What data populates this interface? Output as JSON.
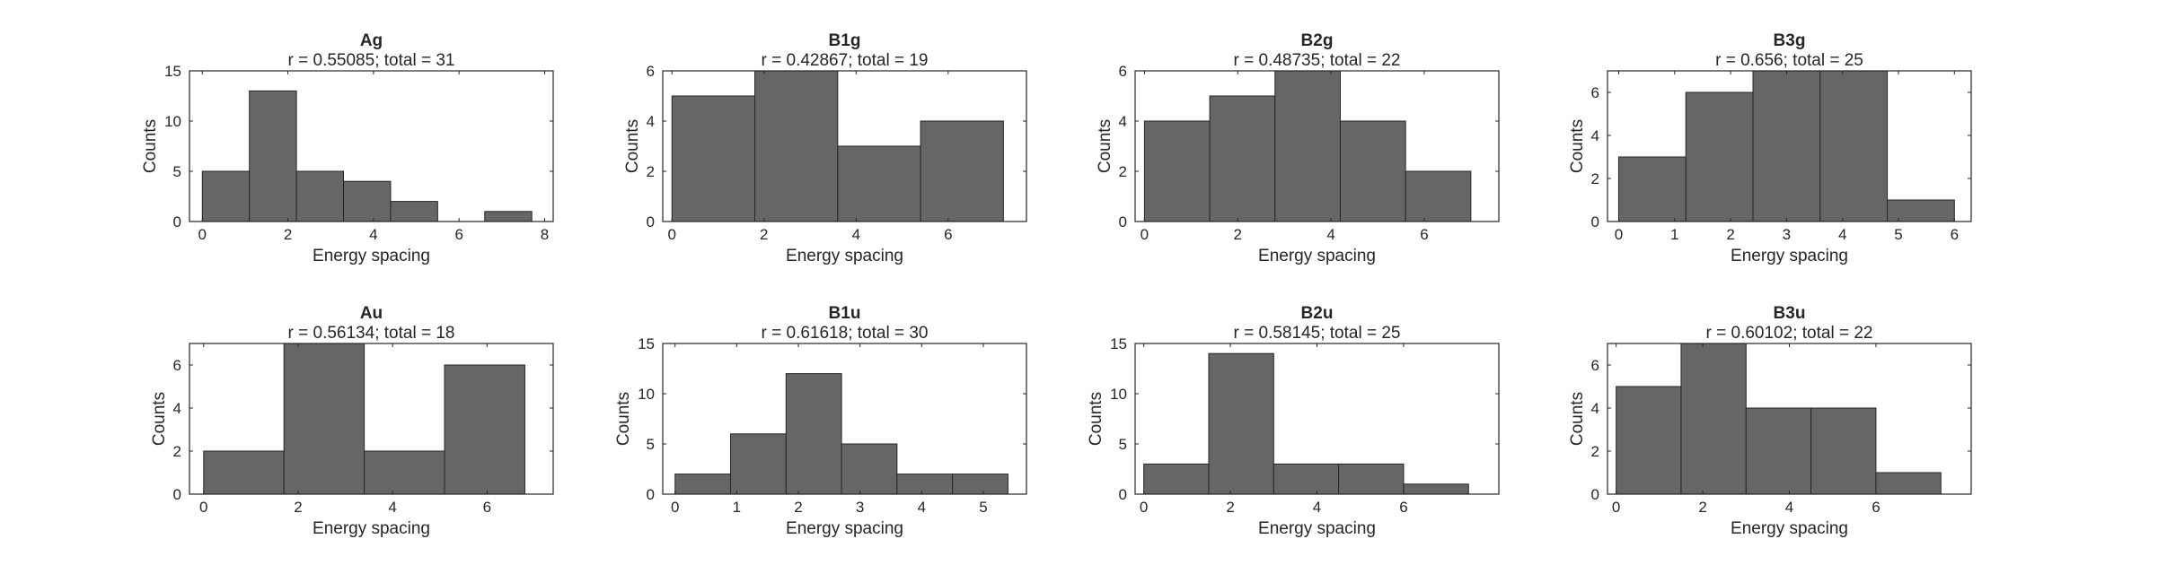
{
  "colors": {
    "bar": "#666666",
    "axis": "#262626",
    "background": "#ffffff"
  },
  "chart_data": [
    {
      "type": "bar",
      "title": "Ag",
      "subtitle": "r = 0.55085; total = 31",
      "xlabel": "Energy spacing",
      "ylabel": "Counts",
      "xlim": [
        -0.3,
        8.2
      ],
      "ylim": [
        0,
        15
      ],
      "xticks": [
        0,
        2,
        4,
        6,
        8
      ],
      "yticks": [
        0,
        5,
        10,
        15
      ],
      "edges": [
        0,
        1.1,
        2.2,
        3.3,
        4.4,
        5.5,
        6.6,
        7.7
      ],
      "values": [
        5,
        13,
        5,
        4,
        2,
        0,
        1
      ]
    },
    {
      "type": "bar",
      "title": "B1g",
      "subtitle": "r = 0.42867; total = 19",
      "xlabel": "Energy spacing",
      "ylabel": "Counts",
      "xlim": [
        -0.2,
        7.7
      ],
      "ylim": [
        0,
        6
      ],
      "xticks": [
        0,
        2,
        4,
        6
      ],
      "yticks": [
        0,
        2,
        4,
        6
      ],
      "edges": [
        0,
        1.8,
        3.6,
        5.4,
        7.2
      ],
      "values": [
        5,
        6,
        3,
        4
      ]
    },
    {
      "type": "bar",
      "title": "B2g",
      "subtitle": "r = 0.48735; total = 22",
      "xlabel": "Energy spacing",
      "ylabel": "Counts",
      "xlim": [
        -0.2,
        7.6
      ],
      "ylim": [
        0,
        6
      ],
      "xticks": [
        0,
        2,
        4,
        6
      ],
      "yticks": [
        0,
        2,
        4,
        6
      ],
      "edges": [
        0,
        1.4,
        2.8,
        4.2,
        5.6,
        7.0
      ],
      "values": [
        4,
        5,
        6,
        4,
        2
      ]
    },
    {
      "type": "bar",
      "title": "B3g",
      "subtitle": "r = 0.656; total = 25",
      "xlabel": "Energy spacing",
      "ylabel": "Counts",
      "xlim": [
        -0.2,
        6.3
      ],
      "ylim": [
        0,
        7
      ],
      "xticks": [
        0,
        1,
        2,
        3,
        4,
        5,
        6
      ],
      "yticks": [
        0,
        2,
        4,
        6
      ],
      "edges": [
        0,
        1.2,
        2.4,
        3.6,
        4.8,
        6.0
      ],
      "values": [
        3,
        6,
        7,
        7,
        1
      ]
    },
    {
      "type": "bar",
      "title": "Au",
      "subtitle": "r = 0.56134; total = 18",
      "xlabel": "Energy spacing",
      "ylabel": "Counts",
      "xlim": [
        -0.3,
        7.4
      ],
      "ylim": [
        0,
        7
      ],
      "xticks": [
        0,
        2,
        4,
        6
      ],
      "yticks": [
        0,
        2,
        4,
        6
      ],
      "edges": [
        0,
        1.7,
        3.4,
        5.1,
        6.8
      ],
      "values": [
        2,
        7,
        2,
        6
      ]
    },
    {
      "type": "bar",
      "title": "B1u",
      "subtitle": "r = 0.61618; total = 30",
      "xlabel": "Energy spacing",
      "ylabel": "Counts",
      "xlim": [
        -0.2,
        5.7
      ],
      "ylim": [
        0,
        15
      ],
      "xticks": [
        0,
        1,
        2,
        3,
        4,
        5
      ],
      "yticks": [
        0,
        5,
        10,
        15
      ],
      "edges": [
        0,
        0.9,
        1.8,
        2.7,
        3.6,
        4.5,
        5.4
      ],
      "values": [
        2,
        6,
        12,
        5,
        2,
        2
      ]
    },
    {
      "type": "bar",
      "title": "B2u",
      "subtitle": "r = 0.58145; total = 25",
      "xlabel": "Energy spacing",
      "ylabel": "Counts",
      "xlim": [
        -0.2,
        8.2
      ],
      "ylim": [
        0,
        15
      ],
      "xticks": [
        0,
        2,
        4,
        6
      ],
      "yticks": [
        0,
        5,
        10,
        15
      ],
      "edges": [
        0,
        1.5,
        3.0,
        4.5,
        6.0,
        7.5
      ],
      "values": [
        3,
        14,
        3,
        3,
        1
      ]
    },
    {
      "type": "bar",
      "title": "B3u",
      "subtitle": "r = 0.60102; total = 22",
      "xlabel": "Energy spacing",
      "ylabel": "Counts",
      "xlim": [
        -0.2,
        8.2
      ],
      "ylim": [
        0,
        7
      ],
      "xticks": [
        0,
        2,
        4,
        6
      ],
      "yticks": [
        0,
        2,
        4,
        6
      ],
      "edges": [
        0,
        1.5,
        3.0,
        4.5,
        6.0,
        7.5
      ],
      "values": [
        5,
        7,
        4,
        4,
        1
      ]
    }
  ]
}
